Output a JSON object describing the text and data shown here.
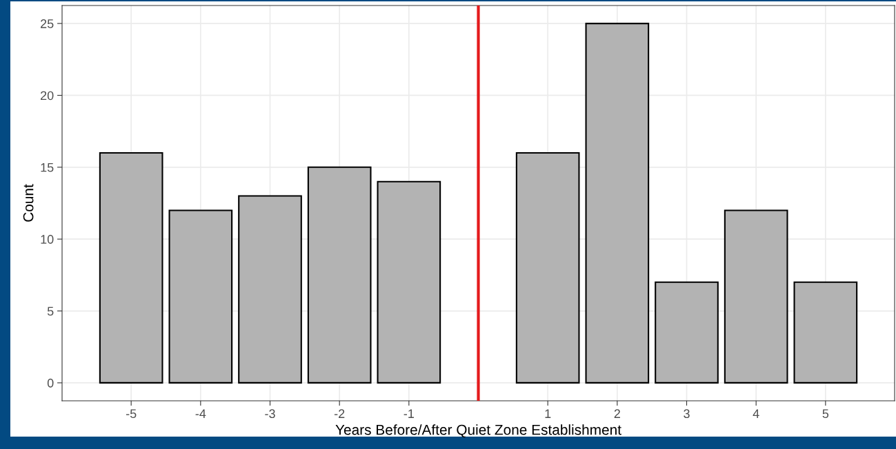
{
  "chart_data": {
    "type": "bar",
    "xlabel": "Years Before/After Quiet Zone Establishment",
    "ylabel": "Count",
    "x": [
      -5,
      -4,
      -3,
      -2,
      -1,
      1,
      2,
      3,
      4,
      5
    ],
    "values": [
      16,
      12,
      13,
      15,
      14,
      16,
      25,
      7,
      12,
      7
    ],
    "color": "#b3b3b3",
    "xlim": [
      -5.995,
      5.995
    ],
    "xticks": [
      -5,
      -4,
      -3,
      -2,
      -1,
      1,
      2,
      3,
      4,
      5
    ],
    "ylim": [
      -1.25,
      26.25
    ],
    "yticks": [
      0,
      5,
      10,
      15,
      20,
      25
    ],
    "grid": true,
    "legend": false,
    "ref_lines": [
      {
        "axis": "x",
        "value": 0,
        "color": "#e41a1c"
      }
    ]
  }
}
